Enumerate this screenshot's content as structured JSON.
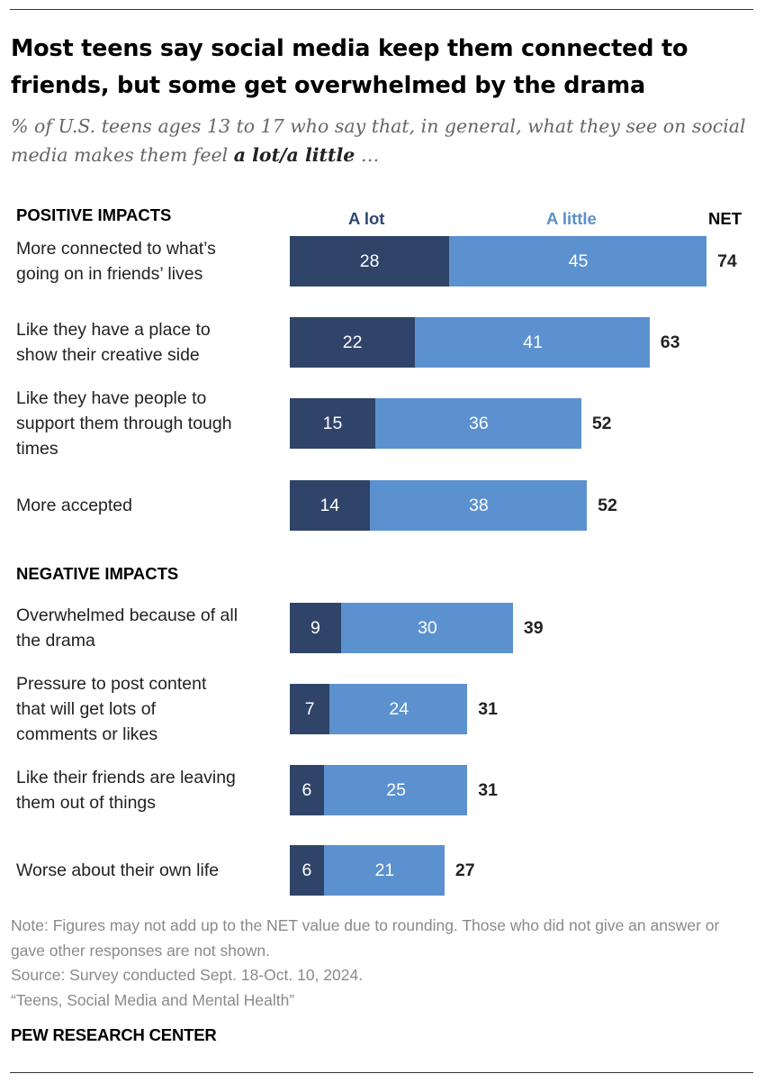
{
  "title": "Most teens say social media keep them connected to friends, but some get overwhelmed by the drama",
  "subtitle_prefix": "% of U.S. teens ages 13 to 17 who say that, in general, what they see on social media makes them feel ",
  "subtitle_emphasis": "a lot/a little",
  "subtitle_suffix": " …",
  "legend": {
    "a_lot": "A lot",
    "a_little": "A little",
    "net": "NET"
  },
  "colors": {
    "a_lot": "#2f4468",
    "a_little": "#5b91cf"
  },
  "chart_data": {
    "type": "bar",
    "orientation": "horizontal",
    "stacked": true,
    "sections": [
      {
        "name": "POSITIVE IMPACTS",
        "categories": [
          "More connected to what’s going on in friends’ lives",
          "Like they have a place to show their creative side",
          "Like they have people to support them through tough times",
          "More accepted"
        ],
        "a_lot": [
          28,
          22,
          15,
          14
        ],
        "a_little": [
          45,
          41,
          36,
          38
        ],
        "net": [
          74,
          63,
          52,
          52
        ]
      },
      {
        "name": "NEGATIVE IMPACTS",
        "categories": [
          "Overwhelmed because of all the drama",
          "Pressure to post content that will get lots of comments or likes",
          "Like their friends are leaving them out of things",
          "Worse about their own life"
        ],
        "a_lot": [
          9,
          7,
          6,
          6
        ],
        "a_little": [
          30,
          24,
          25,
          21
        ],
        "net": [
          39,
          31,
          31,
          27
        ]
      }
    ],
    "series": [
      {
        "name": "A lot"
      },
      {
        "name": "A little"
      }
    ],
    "legend_position": "top"
  },
  "notes": [
    "Note: Figures may not add up to the NET value due to rounding. Those who did not give an answer or gave other responses are not shown.",
    "Source: Survey conducted Sept. 18-Oct. 10, 2024.",
    "“Teens, Social Media and Mental Health”"
  ],
  "brand": "PEW RESEARCH CENTER"
}
